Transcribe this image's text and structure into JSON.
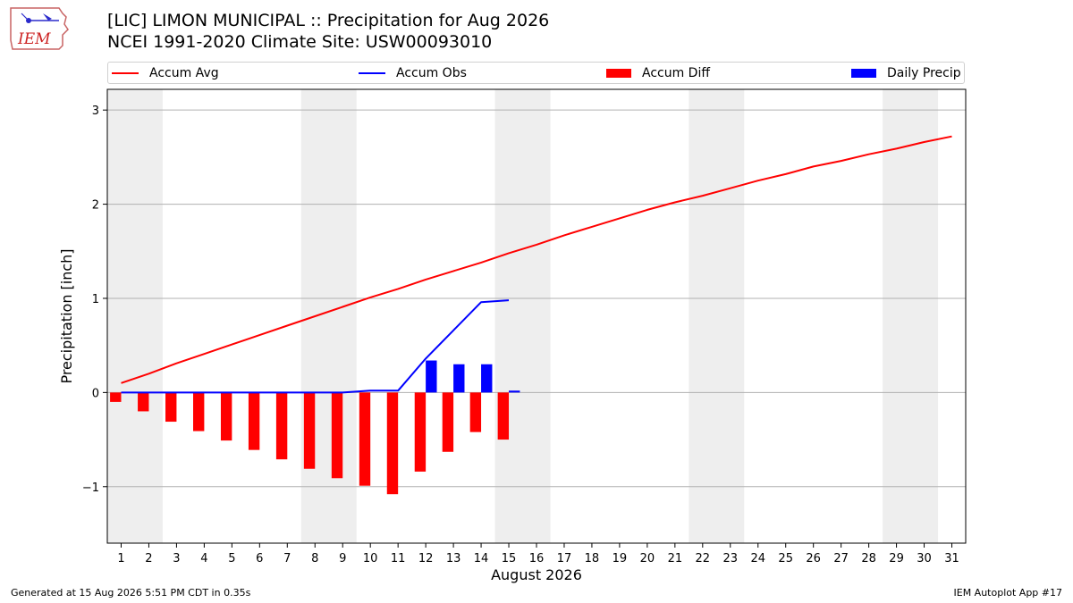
{
  "header": {
    "logo_text": "IEM",
    "title": "[LIC] LIMON MUNICIPAL :: Precipitation for Aug 2026",
    "subtitle": "NCEI 1991-2020 Climate Site: USW00093010"
  },
  "footer": {
    "generated": "Generated at 15 Aug 2026 5:51 PM CDT in 0.35s",
    "app": "IEM Autoplot App #17"
  },
  "colors": {
    "accum_avg": "#ff0000",
    "accum_obs": "#0000ff",
    "accum_diff": "#ff0000",
    "daily_precip": "#0000ff",
    "weekend_shade": "#eeeeee",
    "grid": "#b0b0b0"
  },
  "chart_data": {
    "type": "line",
    "xlabel": "August 2026",
    "ylabel": "Precipitation [inch]",
    "xlim": [
      0.5,
      31.5
    ],
    "ylim": [
      -1.6,
      3.22
    ],
    "yticks": [
      -1,
      0,
      1,
      2,
      3
    ],
    "ytick_labels": [
      "−1",
      "0",
      "1",
      "2",
      "3"
    ],
    "grid": "horizontal",
    "legend_position": "top",
    "legend": [
      "Accum Avg",
      "Accum Obs",
      "Accum Diff",
      "Daily Precip"
    ],
    "x": [
      1,
      2,
      3,
      4,
      5,
      6,
      7,
      8,
      9,
      10,
      11,
      12,
      13,
      14,
      15,
      16,
      17,
      18,
      19,
      20,
      21,
      22,
      23,
      24,
      25,
      26,
      27,
      28,
      29,
      30,
      31
    ],
    "shaded_days": [
      [
        1,
        2
      ],
      [
        8,
        9
      ],
      [
        15,
        16
      ],
      [
        22,
        23
      ],
      [
        29,
        30
      ]
    ],
    "series": [
      {
        "name": "Accum Avg",
        "kind": "line",
        "x": [
          1,
          2,
          3,
          4,
          5,
          6,
          7,
          8,
          9,
          10,
          11,
          12,
          13,
          14,
          15,
          16,
          17,
          18,
          19,
          20,
          21,
          22,
          23,
          24,
          25,
          26,
          27,
          28,
          29,
          30,
          31
        ],
        "values": [
          0.1,
          0.2,
          0.31,
          0.41,
          0.51,
          0.61,
          0.71,
          0.81,
          0.91,
          1.01,
          1.1,
          1.2,
          1.29,
          1.38,
          1.48,
          1.57,
          1.67,
          1.76,
          1.85,
          1.94,
          2.02,
          2.09,
          2.17,
          2.25,
          2.32,
          2.4,
          2.46,
          2.53,
          2.59,
          2.66,
          2.72
        ]
      },
      {
        "name": "Accum Obs",
        "kind": "line",
        "x": [
          1,
          2,
          3,
          4,
          5,
          6,
          7,
          8,
          9,
          10,
          11,
          12,
          13,
          14,
          15
        ],
        "values": [
          0.0,
          0.0,
          0.0,
          0.0,
          0.0,
          0.0,
          0.0,
          0.0,
          0.0,
          0.02,
          0.02,
          0.36,
          0.66,
          0.96,
          0.98
        ]
      },
      {
        "name": "Accum Diff",
        "kind": "bar",
        "x": [
          1,
          2,
          3,
          4,
          5,
          6,
          7,
          8,
          9,
          10,
          11,
          12,
          13,
          14,
          15
        ],
        "values": [
          -0.1,
          -0.2,
          -0.31,
          -0.41,
          -0.51,
          -0.61,
          -0.71,
          -0.81,
          -0.91,
          -0.99,
          -1.08,
          -0.84,
          -0.63,
          -0.42,
          -0.5
        ]
      },
      {
        "name": "Daily Precip",
        "kind": "bar",
        "x": [
          12,
          13,
          14,
          15
        ],
        "values": [
          0.34,
          0.3,
          0.3,
          0.02
        ]
      }
    ]
  }
}
